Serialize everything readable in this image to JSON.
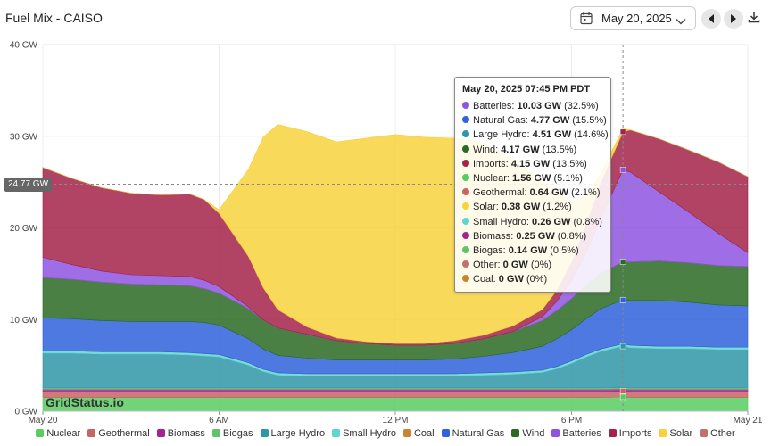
{
  "header": {
    "title": "Fuel Mix - CAISO",
    "date": "May 20, 2025"
  },
  "watermark": "GridStatus.io",
  "crosshair": {
    "label": "24.77 GW"
  },
  "tooltip": {
    "title": "May 20, 2025 07:45 PM PDT",
    "rows": [
      {
        "name": "Batteries",
        "value": "10.03 GW",
        "pct": "(32.5%)",
        "color": "#8e54e0"
      },
      {
        "name": "Natural Gas",
        "value": "4.77 GW",
        "pct": "(15.5%)",
        "color": "#2f62dc"
      },
      {
        "name": "Large Hydro",
        "value": "4.51 GW",
        "pct": "(14.6%)",
        "color": "#2f96a8"
      },
      {
        "name": "Wind",
        "value": "4.17 GW",
        "pct": "(13.5%)",
        "color": "#2c6a24"
      },
      {
        "name": "Imports",
        "value": "4.15 GW",
        "pct": "(13.5%)",
        "color": "#a3234a"
      },
      {
        "name": "Nuclear",
        "value": "1.56 GW",
        "pct": "(5.1%)",
        "color": "#58cc62"
      },
      {
        "name": "Geothermal",
        "value": "0.64 GW",
        "pct": "(2.1%)",
        "color": "#c86464"
      },
      {
        "name": "Solar",
        "value": "0.38 GW",
        "pct": "(1.2%)",
        "color": "#f7d23c"
      },
      {
        "name": "Small Hydro",
        "value": "0.26 GW",
        "pct": "(0.8%)",
        "color": "#5fd6d0"
      },
      {
        "name": "Biomass",
        "value": "0.25 GW",
        "pct": "(0.8%)",
        "color": "#a4238f"
      },
      {
        "name": "Biogas",
        "value": "0.14 GW",
        "pct": "(0.5%)",
        "color": "#63c26b"
      },
      {
        "name": "Other",
        "value": "0 GW",
        "pct": "(0%)",
        "color": "#c2726c"
      },
      {
        "name": "Coal",
        "value": "0 GW",
        "pct": "(0%)",
        "color": "#c98433"
      }
    ]
  },
  "chart_data": {
    "type": "area",
    "stacked": true,
    "title": "Fuel Mix - CAISO",
    "ylabel": "",
    "xlabel": "",
    "ylim": [
      0,
      40
    ],
    "y_unit": "GW",
    "xlim_hours": [
      0,
      24
    ],
    "x_ticks": [
      {
        "hour": 0,
        "label": "May 20"
      },
      {
        "hour": 6,
        "label": "6 AM"
      },
      {
        "hour": 12,
        "label": "12 PM"
      },
      {
        "hour": 18,
        "label": "6 PM"
      },
      {
        "hour": 24,
        "label": "May 21"
      }
    ],
    "y_ticks": [
      {
        "value": 0,
        "label": "0 GW"
      },
      {
        "value": 10,
        "label": "10 GW"
      },
      {
        "value": 20,
        "label": "20 GW"
      },
      {
        "value": 30,
        "label": "30 GW"
      },
      {
        "value": 40,
        "label": "40 GW"
      }
    ],
    "crosshair": {
      "hour": 19.75,
      "value": 24.77
    },
    "x": [
      0,
      1,
      2,
      3,
      4,
      5,
      5.5,
      6,
      7,
      7.5,
      8,
      9,
      10,
      11,
      12,
      13,
      14,
      15,
      16,
      17,
      17.5,
      18,
      18.5,
      19,
      19.75,
      20,
      21,
      22,
      23,
      24
    ],
    "series": [
      {
        "name": "Nuclear",
        "color": "#58cc62",
        "values": [
          1.5,
          1.5,
          1.5,
          1.5,
          1.5,
          1.5,
          1.5,
          1.5,
          1.5,
          1.5,
          1.5,
          1.5,
          1.5,
          1.5,
          1.5,
          1.5,
          1.5,
          1.5,
          1.5,
          1.5,
          1.5,
          1.5,
          1.5,
          1.5,
          1.56,
          1.5,
          1.5,
          1.5,
          1.5,
          1.5
        ]
      },
      {
        "name": "Geothermal",
        "color": "#c86464",
        "values": [
          0.64,
          0.64,
          0.64,
          0.64,
          0.64,
          0.64,
          0.64,
          0.64,
          0.64,
          0.64,
          0.64,
          0.64,
          0.64,
          0.64,
          0.64,
          0.64,
          0.64,
          0.64,
          0.64,
          0.64,
          0.64,
          0.64,
          0.64,
          0.64,
          0.64,
          0.64,
          0.64,
          0.64,
          0.64,
          0.64
        ]
      },
      {
        "name": "Biomass",
        "color": "#a4238f",
        "values": [
          0.25,
          0.25,
          0.25,
          0.25,
          0.25,
          0.25,
          0.25,
          0.25,
          0.25,
          0.25,
          0.25,
          0.25,
          0.25,
          0.25,
          0.25,
          0.25,
          0.25,
          0.25,
          0.25,
          0.25,
          0.25,
          0.25,
          0.25,
          0.25,
          0.25,
          0.25,
          0.25,
          0.25,
          0.25,
          0.25
        ]
      },
      {
        "name": "Biogas",
        "color": "#63c26b",
        "values": [
          0.14,
          0.14,
          0.14,
          0.14,
          0.14,
          0.14,
          0.14,
          0.14,
          0.14,
          0.14,
          0.14,
          0.14,
          0.14,
          0.14,
          0.14,
          0.14,
          0.14,
          0.14,
          0.14,
          0.14,
          0.14,
          0.14,
          0.14,
          0.14,
          0.14,
          0.14,
          0.14,
          0.14,
          0.14,
          0.14
        ]
      },
      {
        "name": "Large Hydro",
        "color": "#2f96a8",
        "values": [
          3.8,
          3.8,
          3.7,
          3.7,
          3.7,
          3.6,
          3.5,
          3.4,
          2.5,
          1.8,
          1.4,
          1.3,
          1.3,
          1.3,
          1.3,
          1.3,
          1.3,
          1.4,
          1.5,
          1.7,
          2.1,
          2.7,
          3.4,
          4.0,
          4.51,
          4.4,
          4.3,
          4.3,
          4.2,
          4.2
        ]
      },
      {
        "name": "Small Hydro",
        "color": "#5fd6d0",
        "values": [
          0.26,
          0.26,
          0.26,
          0.26,
          0.26,
          0.26,
          0.26,
          0.26,
          0.26,
          0.26,
          0.26,
          0.26,
          0.26,
          0.26,
          0.26,
          0.26,
          0.26,
          0.26,
          0.26,
          0.26,
          0.26,
          0.26,
          0.26,
          0.26,
          0.26,
          0.26,
          0.26,
          0.26,
          0.26,
          0.26
        ]
      },
      {
        "name": "Coal",
        "color": "#c98433",
        "values": [
          0,
          0,
          0,
          0,
          0,
          0,
          0,
          0,
          0,
          0,
          0,
          0,
          0,
          0,
          0,
          0,
          0,
          0,
          0,
          0,
          0,
          0,
          0,
          0,
          0,
          0,
          0,
          0,
          0,
          0
        ]
      },
      {
        "name": "Natural Gas",
        "color": "#2f62dc",
        "values": [
          3.6,
          3.5,
          3.4,
          3.3,
          3.3,
          3.4,
          3.4,
          3.2,
          2.6,
          2.2,
          1.9,
          1.7,
          1.5,
          1.5,
          1.5,
          1.5,
          1.6,
          1.8,
          2.1,
          2.6,
          3.0,
          3.4,
          3.9,
          4.4,
          4.77,
          4.9,
          5.0,
          4.8,
          4.6,
          4.5
        ]
      },
      {
        "name": "Wind",
        "color": "#2c6a24",
        "values": [
          4.4,
          4.3,
          4.2,
          4.1,
          4.0,
          3.9,
          3.7,
          3.5,
          3.3,
          3.2,
          3.0,
          2.6,
          2.1,
          1.8,
          1.6,
          1.6,
          1.7,
          1.9,
          2.3,
          2.8,
          3.1,
          3.4,
          3.7,
          3.9,
          4.17,
          4.2,
          4.3,
          4.3,
          4.3,
          4.3
        ]
      },
      {
        "name": "Other",
        "color": "#c2726c",
        "values": [
          0,
          0,
          0,
          0,
          0,
          0,
          0,
          0,
          0,
          0,
          0,
          0,
          0,
          0,
          0,
          0,
          0,
          0,
          0,
          0,
          0,
          0,
          0,
          0,
          0,
          0,
          0,
          0,
          0,
          0
        ]
      },
      {
        "name": "Batteries",
        "color": "#8e54e0",
        "values": [
          2.2,
          1.6,
          1.2,
          1.0,
          1.0,
          1.0,
          0.9,
          0.7,
          0.2,
          0,
          0,
          0,
          0,
          0,
          0,
          0,
          0,
          0,
          0,
          0.4,
          1.0,
          2.0,
          3.5,
          6.0,
          10.03,
          9.8,
          7.5,
          5.5,
          3.5,
          1.5
        ]
      },
      {
        "name": "Imports",
        "color": "#a3234a",
        "values": [
          9.8,
          9.4,
          9.1,
          8.9,
          8.8,
          9.0,
          8.8,
          8.0,
          5.5,
          3.5,
          2.0,
          0.8,
          0.3,
          0.2,
          0.2,
          0.2,
          0.3,
          0.4,
          0.6,
          0.8,
          1.2,
          2.0,
          3.2,
          3.9,
          4.15,
          4.6,
          5.8,
          6.8,
          7.8,
          8.3
        ]
      },
      {
        "name": "Solar",
        "color": "#f7d23c",
        "values": [
          0,
          0,
          0,
          0,
          0,
          0,
          0,
          0.4,
          9.5,
          16.4,
          20.2,
          21.3,
          21.4,
          22.2,
          22.8,
          22.5,
          22.1,
          21.0,
          18.2,
          14.0,
          10.8,
          6.5,
          3.0,
          1.0,
          0.38,
          0,
          0,
          0,
          0,
          0
        ]
      }
    ]
  },
  "legend": [
    {
      "name": "Nuclear",
      "color": "#58cc62"
    },
    {
      "name": "Geothermal",
      "color": "#c86464"
    },
    {
      "name": "Biomass",
      "color": "#a4238f"
    },
    {
      "name": "Biogas",
      "color": "#63c26b"
    },
    {
      "name": "Large Hydro",
      "color": "#2f96a8"
    },
    {
      "name": "Small Hydro",
      "color": "#5fd6d0"
    },
    {
      "name": "Coal",
      "color": "#c98433"
    },
    {
      "name": "Natural Gas",
      "color": "#2f62dc"
    },
    {
      "name": "Wind",
      "color": "#2c6a24"
    },
    {
      "name": "Batteries",
      "color": "#8e54e0"
    },
    {
      "name": "Imports",
      "color": "#a3234a"
    },
    {
      "name": "Solar",
      "color": "#f7d23c"
    },
    {
      "name": "Other",
      "color": "#c2726c"
    }
  ]
}
